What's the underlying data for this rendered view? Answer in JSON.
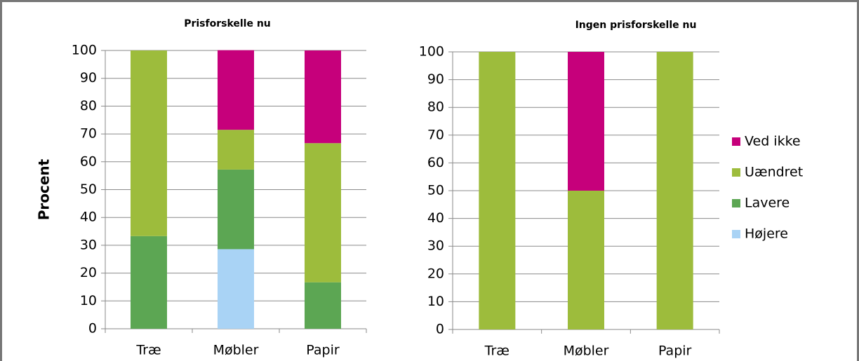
{
  "chart_data": [
    {
      "type": "bar",
      "title": "Prisforskelle nu",
      "ylabel": "Procent",
      "categories": [
        "Træ",
        "Møbler",
        "Papir"
      ],
      "series": [
        {
          "color": "#a9d3f5",
          "values": [
            0,
            28.6,
            0
          ]
        },
        {
          "color": "#5ca653",
          "values": [
            33.3,
            28.6,
            16.7
          ]
        },
        {
          "color": "#9dbc3c",
          "values": [
            66.7,
            14.3,
            50
          ]
        },
        {
          "color": "#c6007b",
          "values": [
            0,
            28.6,
            33.3
          ]
        }
      ],
      "ylim": [
        0,
        100
      ],
      "yticks": [
        0,
        10,
        20,
        30,
        40,
        50,
        60,
        70,
        80,
        90,
        100
      ],
      "grid": true
    },
    {
      "type": "bar",
      "title": "Ingen prisforskelle nu",
      "categories": [
        "Træ",
        "Møbler",
        "Papir"
      ],
      "series": [
        {
          "name": "Højere",
          "color": "#a9d3f5",
          "values": [
            0,
            0,
            0
          ]
        },
        {
          "name": "Lavere",
          "color": "#5ca653",
          "values": [
            0,
            0,
            0
          ]
        },
        {
          "name": "Uændret",
          "color": "#9dbc3c",
          "values": [
            100,
            50,
            100
          ]
        },
        {
          "name": "Ved ikke",
          "color": "#c6007b",
          "values": [
            0,
            50,
            0
          ]
        }
      ],
      "ylim": [
        0,
        100
      ],
      "yticks": [
        0,
        10,
        20,
        30,
        40,
        50,
        60,
        70,
        80,
        90,
        100
      ],
      "grid": true,
      "legend": "right"
    }
  ]
}
